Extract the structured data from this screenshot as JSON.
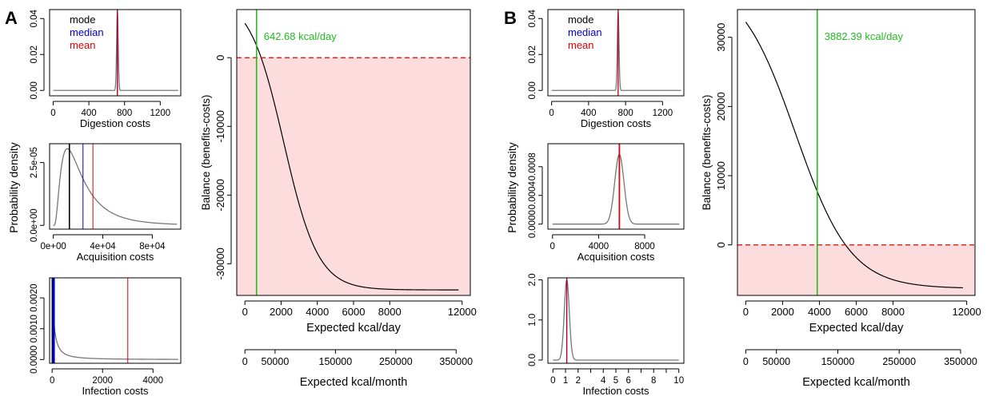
{
  "panels": [
    {
      "label": "A"
    },
    {
      "label": "B"
    }
  ],
  "chart_data": [
    {
      "id": "A-digestion",
      "type": "line",
      "panel": "A",
      "xlabel": "Digestion costs",
      "ylabel": "",
      "xlim": [
        -40,
        1430
      ],
      "ylim": [
        -0.003,
        0.045
      ],
      "xticks": [
        0,
        400,
        800,
        1200
      ],
      "xtick_labels": [
        "0",
        "400",
        "800",
        "1200"
      ],
      "yticks": [
        0,
        0.02,
        0.04
      ],
      "ytick_labels": [
        "0.00",
        "0.02",
        "0.04"
      ],
      "density": {
        "shape": "gauss",
        "mu": 720,
        "sigma": 9,
        "amp": 0.044,
        "x_range": [
          0,
          1400
        ]
      },
      "vlines": [
        {
          "name": "mode",
          "x": 719,
          "color": "#000000",
          "width": 1
        },
        {
          "name": "median",
          "x": 720,
          "color": "#0000cc",
          "width": 1
        },
        {
          "name": "mean",
          "x": 721,
          "color": "#e00000",
          "width": 1
        }
      ],
      "legend": {
        "position": "top-left",
        "entries": [
          {
            "label": "mode",
            "color": "#000000"
          },
          {
            "label": "median",
            "color": "#0000cc"
          },
          {
            "label": "mean",
            "color": "#e00000"
          }
        ]
      }
    },
    {
      "id": "A-acquisition",
      "type": "line",
      "panel": "A",
      "xlabel": "Acquisition costs",
      "ylabel": "",
      "xlim": [
        -3000,
        103000
      ],
      "ylim": [
        -1.5e-06,
        3.25e-05
      ],
      "xticks": [
        0,
        40000,
        80000
      ],
      "xtick_labels": [
        "0e+00",
        "4e+04",
        "8e+04"
      ],
      "yticks": [
        0,
        2.5e-05
      ],
      "ytick_labels": [
        "0.0e+00",
        "2.5e-05"
      ],
      "density": {
        "shape": "lognorm",
        "mu": 9.9,
        "sigma": 0.75,
        "amp": 3.05e-05,
        "x_range": [
          0,
          100000
        ]
      },
      "vlines": [
        {
          "name": "mode",
          "x": 13000,
          "color": "#000000",
          "width": 1.6
        },
        {
          "name": "median",
          "x": 24000,
          "color": "#0000cc",
          "width": 1
        },
        {
          "name": "mean",
          "x": 32000,
          "color": "#e00000",
          "width": 1
        }
      ]
    },
    {
      "id": "A-infection",
      "type": "line",
      "panel": "A",
      "xlabel": "Infection costs",
      "ylabel": "",
      "xlim": [
        -100,
        5100
      ],
      "ylim": [
        -0.00012,
        0.00265
      ],
      "xticks": [
        0,
        2000,
        4000
      ],
      "xtick_labels": [
        "0",
        "2000",
        "4000"
      ],
      "yticks": [
        0,
        0.001,
        0.002
      ],
      "ytick_labels": [
        "0.0000",
        "0.0010",
        "0.0020"
      ],
      "density": {
        "shape": "heavy",
        "a": 120,
        "amp": 0.0026,
        "x_range": [
          0,
          5000
        ]
      },
      "vlines": [
        {
          "name": "mode",
          "x": 30,
          "color": "#000000",
          "width": 3
        },
        {
          "name": "median",
          "x": 60,
          "color": "#0000cc",
          "width": 3
        },
        {
          "name": "mean",
          "x": 3000,
          "color": "#e00000",
          "width": 1
        }
      ]
    },
    {
      "id": "A-balance",
      "type": "line",
      "panel": "A",
      "xlabel": "Expected kcal/day",
      "ylabel": "Balance (benefits-costs)",
      "xlim": [
        -450,
        12450
      ],
      "ylim": [
        -34600,
        7000
      ],
      "xticks": [
        0,
        2000,
        4000,
        6000,
        8000,
        12000
      ],
      "xtick_labels": [
        "0",
        "2000",
        "4000",
        "6000",
        "8000",
        "12000"
      ],
      "yticks": [
        0,
        -10000,
        -20000,
        -30000
      ],
      "ytick_labels": [
        "0",
        "-10000",
        "-20000",
        "-30000"
      ],
      "curve": {
        "shape": "sigmoid",
        "x0": 0,
        "x1": 11800,
        "ystart": 5000,
        "yend": -33800,
        "mid": 2150,
        "s": 950
      },
      "hline": {
        "y": 0,
        "color": "#e00000",
        "dash": true
      },
      "shade": {
        "from_y": 0,
        "color": "#fcdcdc"
      },
      "threshold": {
        "x": 642.68,
        "color": "#22bb22",
        "label": "642.68 kcal/day"
      },
      "secondary_axis": {
        "label": "Expected kcal/month",
        "ticks": [
          0,
          50000,
          150000,
          250000,
          350000
        ],
        "tick_labels": [
          "0",
          "50000",
          "150000",
          "250000",
          "350000"
        ],
        "per_day_factor": 30
      }
    },
    {
      "id": "B-digestion",
      "type": "line",
      "panel": "B",
      "xlabel": "Digestion costs",
      "ylabel": "",
      "xlim": [
        -40,
        1430
      ],
      "ylim": [
        -0.003,
        0.045
      ],
      "xticks": [
        0,
        400,
        800,
        1200
      ],
      "xtick_labels": [
        "0",
        "400",
        "800",
        "1200"
      ],
      "yticks": [
        0,
        0.02,
        0.04
      ],
      "ytick_labels": [
        "0.00",
        "0.02",
        "0.04"
      ],
      "density": {
        "shape": "gauss",
        "mu": 720,
        "sigma": 9,
        "amp": 0.044,
        "x_range": [
          0,
          1400
        ]
      },
      "vlines": [
        {
          "name": "mode",
          "x": 719,
          "color": "#000000",
          "width": 1
        },
        {
          "name": "median",
          "x": 720,
          "color": "#0000cc",
          "width": 1
        },
        {
          "name": "mean",
          "x": 721,
          "color": "#e00000",
          "width": 1
        }
      ],
      "legend": {
        "position": "top-left",
        "entries": [
          {
            "label": "mode",
            "color": "#000000"
          },
          {
            "label": "median",
            "color": "#0000cc"
          },
          {
            "label": "mean",
            "color": "#e00000"
          }
        ]
      }
    },
    {
      "id": "B-acquisition",
      "type": "line",
      "panel": "B",
      "xlabel": "Acquisition costs",
      "ylabel": "",
      "xlim": [
        -400,
        11400
      ],
      "ylim": [
        -7e-05,
        0.00112
      ],
      "xticks": [
        0,
        4000,
        8000
      ],
      "xtick_labels": [
        "0",
        "4000",
        "8000"
      ],
      "yticks": [
        0,
        0.0004,
        0.0008
      ],
      "ytick_labels": [
        "0.0000",
        "0.0004",
        "0.0008"
      ],
      "density": {
        "shape": "gauss",
        "mu": 5800,
        "sigma": 400,
        "amp": 0.00097,
        "x_range": [
          0,
          11000
        ]
      },
      "vlines": [
        {
          "name": "mode",
          "x": 5790,
          "color": "#000000",
          "width": 1
        },
        {
          "name": "median",
          "x": 5800,
          "color": "#0000cc",
          "width": 1
        },
        {
          "name": "mean",
          "x": 5810,
          "color": "#e00000",
          "width": 1.6
        }
      ]
    },
    {
      "id": "B-infection",
      "type": "line",
      "panel": "B",
      "xlabel": "Infection costs",
      "ylabel": "",
      "xlim": [
        -0.4,
        10.4
      ],
      "ylim": [
        -0.08,
        2.05
      ],
      "xticks": [
        0,
        1,
        2,
        3,
        4,
        5,
        6,
        7,
        8,
        9,
        10
      ],
      "xtick_labels": [
        "0",
        "1",
        "2",
        "4",
        "5",
        "6",
        "8",
        "10"
      ],
      "xticks_labeled": [
        0,
        1,
        2,
        4,
        5,
        6,
        8,
        10
      ],
      "yticks": [
        0,
        1,
        2
      ],
      "ytick_labels": [
        "0.0",
        "1.0",
        "2.0"
      ],
      "density": {
        "shape": "gauss",
        "mu": 1.1,
        "sigma": 0.2,
        "amp": 2.0,
        "x_range": [
          0,
          10
        ]
      },
      "vlines": [
        {
          "name": "mode",
          "x": 1.09,
          "color": "#000000",
          "width": 1
        },
        {
          "name": "median",
          "x": 1.1,
          "color": "#0000cc",
          "width": 1
        },
        {
          "name": "mean",
          "x": 1.11,
          "color": "#e00000",
          "width": 1
        }
      ]
    },
    {
      "id": "B-balance",
      "type": "line",
      "panel": "B",
      "xlabel": "Expected kcal/day",
      "ylabel": "Balance (benefits-costs)",
      "xlim": [
        -450,
        12450
      ],
      "ylim": [
        -7300,
        34000
      ],
      "xticks": [
        0,
        2000,
        4000,
        6000,
        8000,
        12000
      ],
      "xtick_labels": [
        "0",
        "2000",
        "4000",
        "6000",
        "8000",
        "12000"
      ],
      "yticks": [
        0,
        10000,
        20000,
        30000
      ],
      "ytick_labels": [
        "0",
        "10000",
        "20000",
        "30000"
      ],
      "curve": {
        "shape": "sigmoid",
        "x0": 0,
        "x1": 11800,
        "ystart": 32200,
        "yend": -6200,
        "mid": 2700,
        "s": 1500
      },
      "hline": {
        "y": 0,
        "color": "#e00000",
        "dash": true
      },
      "shade": {
        "from_y": 0,
        "color": "#fcdcdc"
      },
      "threshold": {
        "x": 3882.39,
        "color": "#22bb22",
        "label": "3882.39 kcal/day"
      },
      "secondary_axis": {
        "label": "Expected kcal/month",
        "ticks": [
          0,
          50000,
          150000,
          250000,
          350000
        ],
        "tick_labels": [
          "0",
          "50000",
          "150000",
          "250000",
          "350000"
        ],
        "per_day_factor": 30
      }
    }
  ],
  "shared": {
    "ylabel_small": "Probability density"
  }
}
